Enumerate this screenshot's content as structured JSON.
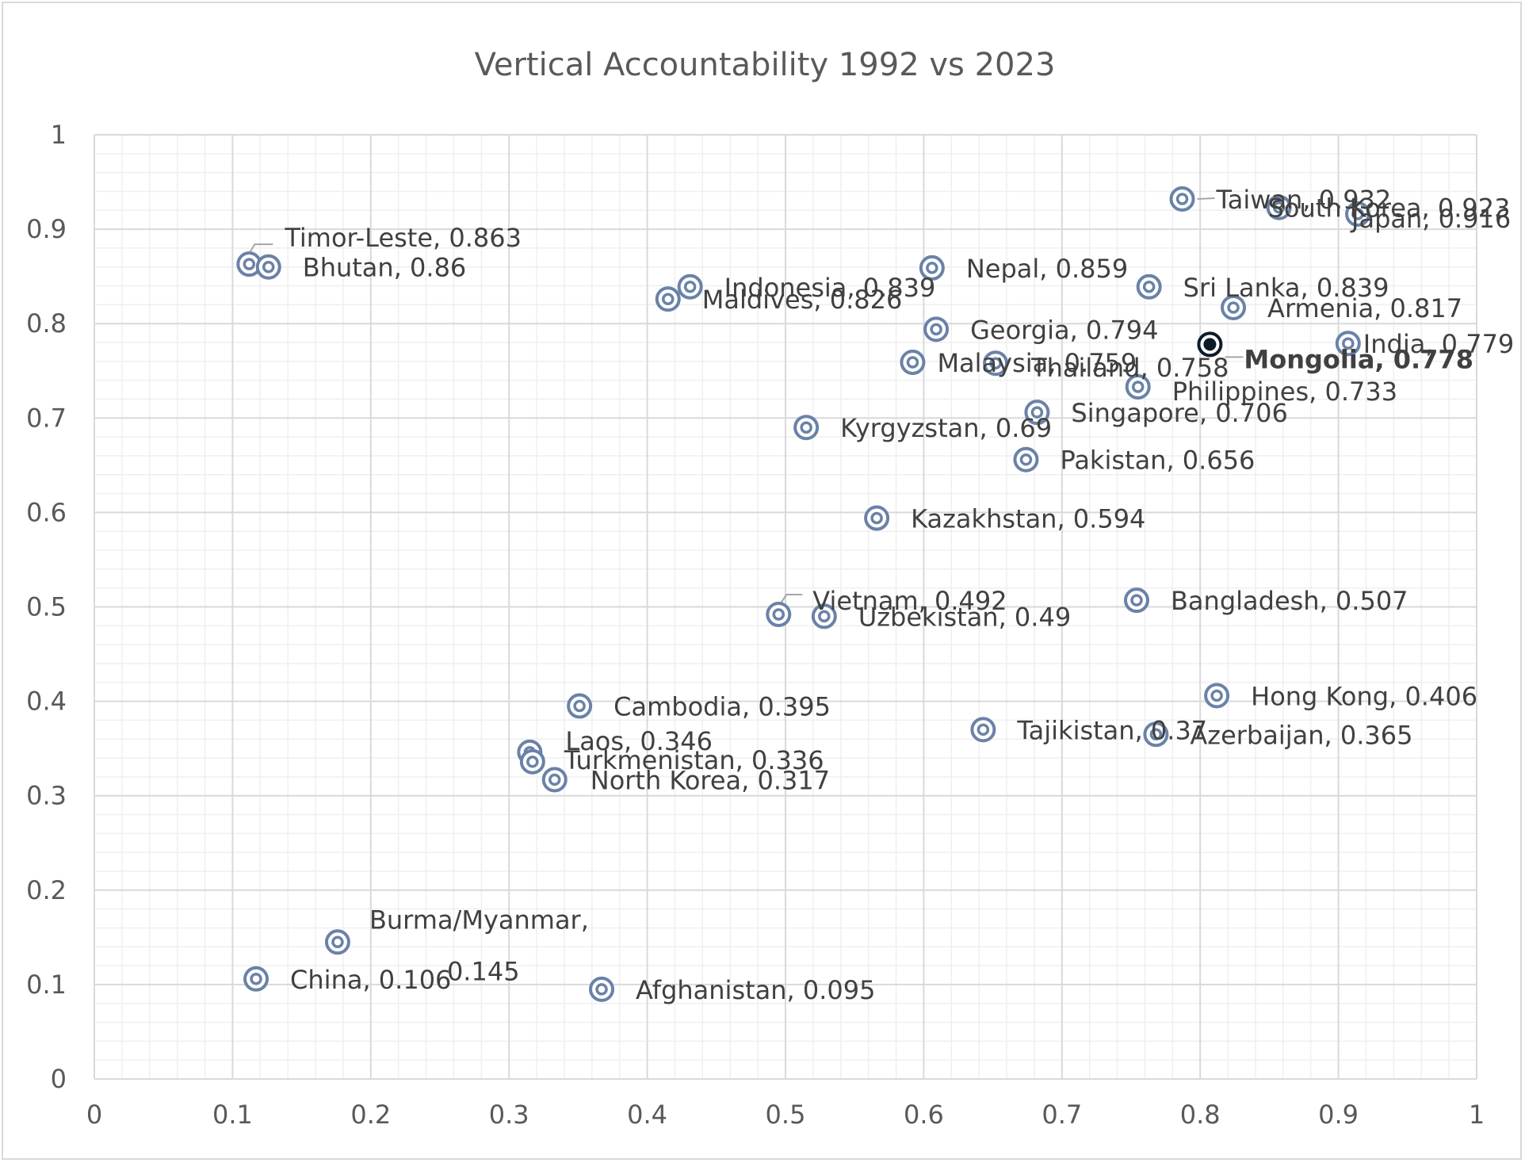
{
  "chart_data": {
    "type": "scatter",
    "title": "Vertical Accountability 1992 vs 2023",
    "xlabel": "",
    "ylabel": "",
    "xlim": [
      0,
      1
    ],
    "ylim": [
      0,
      1
    ],
    "x_ticks": [
      "0",
      "0.1",
      "0.2",
      "0.3",
      "0.4",
      "0.5",
      "0.6",
      "0.7",
      "0.8",
      "0.9",
      "1"
    ],
    "y_ticks": [
      "0",
      "0.1",
      "0.2",
      "0.3",
      "0.4",
      "0.5",
      "0.6",
      "0.7",
      "0.8",
      "0.9",
      "1"
    ],
    "grid": true,
    "legend": "none",
    "marker": "double-ring",
    "colors": {
      "marker": "#6a82a8",
      "highlight_marker": "#0d1b2a",
      "gridline_major": "#d9d9d9",
      "gridline_minor": "#efefef",
      "text": "#404040"
    },
    "points": [
      {
        "name": "Timor-Leste",
        "x": 0.112,
        "y": 0.863,
        "label": "Timor-Leste, 0.863"
      },
      {
        "name": "Bhutan",
        "x": 0.126,
        "y": 0.86,
        "label": "Bhutan, 0.86"
      },
      {
        "name": "China",
        "x": 0.117,
        "y": 0.106,
        "label": "China, 0.106"
      },
      {
        "name": "Burma/Myanmar",
        "x": 0.176,
        "y": 0.145,
        "label_lines": [
          "Burma/Myanmar,",
          "0.145"
        ]
      },
      {
        "name": "Laos",
        "x": 0.315,
        "y": 0.346,
        "label": "Laos, 0.346"
      },
      {
        "name": "Turkmenistan",
        "x": 0.317,
        "y": 0.336,
        "label": "Turkmenistan, 0.336"
      },
      {
        "name": "North Korea",
        "x": 0.333,
        "y": 0.317,
        "label": "North Korea, 0.317"
      },
      {
        "name": "Cambodia",
        "x": 0.351,
        "y": 0.395,
        "label": "Cambodia, 0.395"
      },
      {
        "name": "Afghanistan",
        "x": 0.367,
        "y": 0.095,
        "label": "Afghanistan, 0.095"
      },
      {
        "name": "Maldives",
        "x": 0.415,
        "y": 0.826,
        "label": "Maldives, 0.826"
      },
      {
        "name": "Indonesia",
        "x": 0.431,
        "y": 0.839,
        "label": "Indonesia, 0.839"
      },
      {
        "name": "Vietnam",
        "x": 0.495,
        "y": 0.492,
        "label": "Vietnam, 0.492"
      },
      {
        "name": "Kyrgyzstan",
        "x": 0.515,
        "y": 0.69,
        "label": "Kyrgyzstan, 0.69"
      },
      {
        "name": "Uzbekistan",
        "x": 0.528,
        "y": 0.49,
        "label": "Uzbekistan, 0.49"
      },
      {
        "name": "Kazakhstan",
        "x": 0.566,
        "y": 0.594,
        "label": "Kazakhstan, 0.594"
      },
      {
        "name": "Malaysia",
        "x": 0.592,
        "y": 0.759,
        "label": "Malaysia, 0.759"
      },
      {
        "name": "Nepal",
        "x": 0.606,
        "y": 0.859,
        "label": "Nepal, 0.859"
      },
      {
        "name": "Georgia",
        "x": 0.609,
        "y": 0.794,
        "label": "Georgia, 0.794"
      },
      {
        "name": "Tajikistan",
        "x": 0.643,
        "y": 0.37,
        "label": "Tajikistan, 0.37"
      },
      {
        "name": "Thailand",
        "x": 0.652,
        "y": 0.758,
        "label": "Thailand, 0.758"
      },
      {
        "name": "Pakistan",
        "x": 0.674,
        "y": 0.656,
        "label": "Pakistan, 0.656"
      },
      {
        "name": "Singapore",
        "x": 0.682,
        "y": 0.706,
        "label": "Singapore, 0.706"
      },
      {
        "name": "Bangladesh",
        "x": 0.754,
        "y": 0.507,
        "label": "Bangladesh, 0.507"
      },
      {
        "name": "Philippines",
        "x": 0.755,
        "y": 0.733,
        "label": "Philippines, 0.733"
      },
      {
        "name": "Sri Lanka",
        "x": 0.763,
        "y": 0.839,
        "label": "Sri Lanka, 0.839"
      },
      {
        "name": "Azerbaijan",
        "x": 0.768,
        "y": 0.365,
        "label": "Azerbaijan, 0.365"
      },
      {
        "name": "Taiwan",
        "x": 0.787,
        "y": 0.932,
        "label": "Taiwan, 0.932"
      },
      {
        "name": "Mongolia",
        "x": 0.807,
        "y": 0.778,
        "label": "Mongolia, 0.778",
        "highlight": true
      },
      {
        "name": "Hong Kong",
        "x": 0.812,
        "y": 0.406,
        "label": "Hong Kong, 0.406"
      },
      {
        "name": "Armenia",
        "x": 0.824,
        "y": 0.817,
        "label": "Armenia, 0.817"
      },
      {
        "name": "South Korea",
        "x": 0.857,
        "y": 0.923,
        "label": "South Korea, 0.923"
      },
      {
        "name": "India",
        "x": 0.907,
        "y": 0.779,
        "label": "India, 0.779"
      },
      {
        "name": "Japan",
        "x": 0.914,
        "y": 0.916,
        "label": "Japan, 0.916"
      }
    ]
  }
}
